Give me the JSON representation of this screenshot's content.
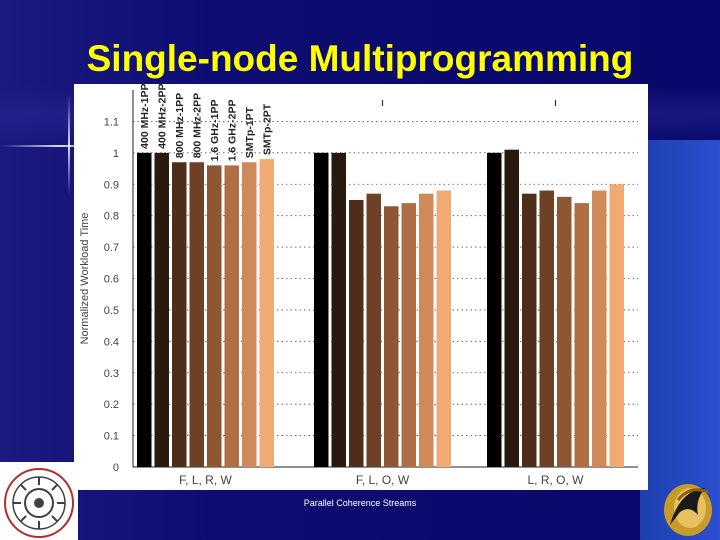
{
  "slide": {
    "title": "Single-node Multiprogramming",
    "footer": "Parallel Coherence Streams"
  },
  "colors": {
    "background": "#0a0a6e",
    "title": "#ffff00",
    "bars": [
      "#000000",
      "#2a1a0e",
      "#4e2e18",
      "#6e4024",
      "#8e5632",
      "#b06e44",
      "#d08a5a",
      "#f0aa74"
    ]
  },
  "chart_data": {
    "type": "bar",
    "ylabel": "Normalized Workload Time",
    "xlabel": "",
    "ylim": [
      0,
      1.2
    ],
    "yticks": [
      0,
      0.1,
      0.2,
      0.3,
      0.4,
      0.5,
      0.6,
      0.7,
      0.8,
      0.9,
      1,
      1.1
    ],
    "grid": true,
    "legend_placement": "rotated labels above first group",
    "categories": [
      "F, L, R, W",
      "F, L, O, W",
      "L, R, O, W"
    ],
    "series": [
      {
        "name": "400 MHz-1PP",
        "values": [
          1.0,
          1.0,
          1.0
        ]
      },
      {
        "name": "400 MHz-2PP",
        "values": [
          1.0,
          1.0,
          1.01
        ]
      },
      {
        "name": "800 MHz-1PP",
        "values": [
          0.97,
          0.85,
          0.87
        ]
      },
      {
        "name": "800 MHz-2PP",
        "values": [
          0.97,
          0.87,
          0.88
        ]
      },
      {
        "name": "1.6 GHz-1PP",
        "values": [
          0.96,
          0.83,
          0.86
        ]
      },
      {
        "name": "1.6 GHz-2PP",
        "values": [
          0.96,
          0.84,
          0.84
        ]
      },
      {
        "name": "SMTp-1PT",
        "values": [
          0.97,
          0.87,
          0.88
        ]
      },
      {
        "name": "SMTp-2PT",
        "values": [
          0.98,
          0.88,
          0.9
        ]
      }
    ]
  }
}
